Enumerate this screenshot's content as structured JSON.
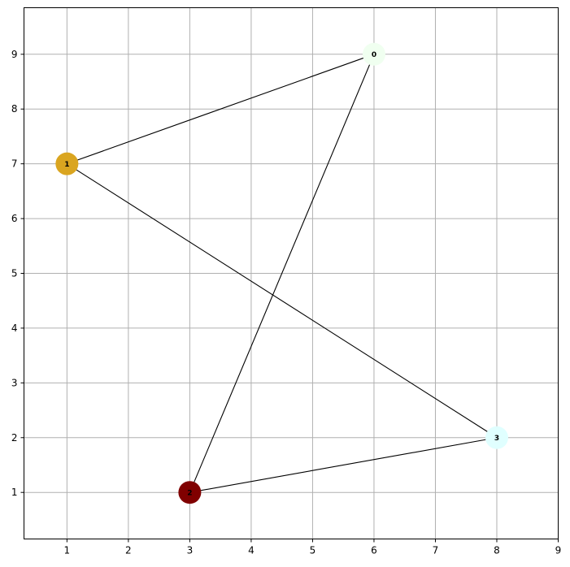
{
  "chart_data": {
    "type": "scatter",
    "xlim": [
      0.3,
      9
    ],
    "ylim": [
      0.15,
      9.85
    ],
    "xticks": [
      1,
      2,
      3,
      4,
      5,
      6,
      7,
      8,
      9
    ],
    "yticks": [
      1,
      2,
      3,
      4,
      5,
      6,
      7,
      8,
      9
    ],
    "grid": true,
    "nodes": [
      {
        "id": "0",
        "x": 6,
        "y": 9,
        "color": "#f0fff0"
      },
      {
        "id": "1",
        "x": 1,
        "y": 7,
        "color": "#daa520"
      },
      {
        "id": "2",
        "x": 3,
        "y": 1,
        "color": "#800000"
      },
      {
        "id": "3",
        "x": 8,
        "y": 2,
        "color": "#e0ffff"
      }
    ],
    "edges": [
      [
        "0",
        "1"
      ],
      [
        "0",
        "2"
      ],
      [
        "1",
        "3"
      ],
      [
        "2",
        "3"
      ]
    ]
  }
}
